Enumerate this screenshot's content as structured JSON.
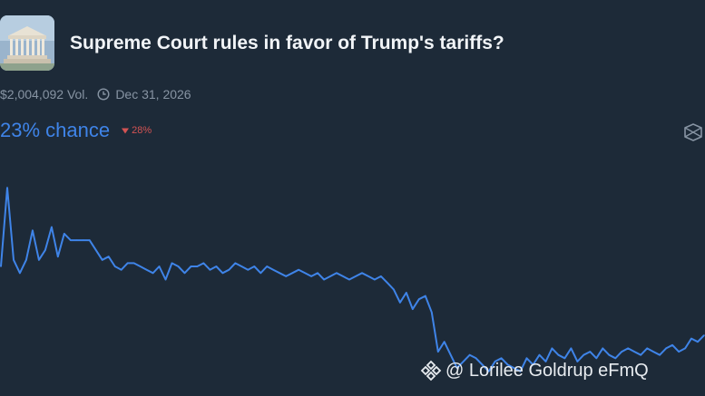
{
  "market": {
    "title": "Supreme Court rules in favor of Trump's tariffs?",
    "volume": "$2,004,092 Vol.",
    "end_date": "Dec 31, 2026",
    "chance": "23% chance",
    "change": "28%",
    "change_direction": "down",
    "thumbnail_icon": "supreme-court-building-image"
  },
  "controls": {
    "layers_icon": "layers-icon"
  },
  "watermark": {
    "text": "@ Lorilee Goldrup eFmQ",
    "icon": "binance-logo-icon"
  },
  "colors": {
    "background": "#1d2a38",
    "accent": "#3f84e8",
    "negative": "#d35353",
    "text_muted": "#8794a3"
  },
  "chart_data": {
    "type": "line",
    "series": [
      {
        "values": [
          44,
          68,
          46,
          42,
          46,
          55,
          46,
          49,
          56,
          47,
          54,
          52,
          52,
          52,
          52,
          49,
          46,
          47,
          44,
          43,
          45,
          45,
          44,
          43,
          42,
          44,
          40,
          45,
          44,
          42,
          44,
          44,
          45,
          43,
          44,
          42,
          43,
          45,
          44,
          43,
          44,
          42,
          44,
          43,
          42,
          41,
          42,
          43,
          42,
          41,
          42,
          40,
          41,
          42,
          41,
          40,
          41,
          42,
          41,
          40,
          41,
          39,
          37,
          33,
          36,
          31,
          34,
          35,
          30,
          18,
          21,
          17,
          13,
          15,
          17,
          16,
          14,
          12,
          15,
          16,
          14,
          13,
          12,
          16,
          14,
          17,
          15,
          19,
          17,
          16,
          19,
          15,
          17,
          18,
          16,
          19,
          17,
          16,
          18,
          19,
          18,
          17,
          19,
          18,
          17,
          19,
          20,
          18,
          19,
          22,
          21,
          23
        ]
      }
    ],
    "grid": false,
    "legend": "none"
  }
}
